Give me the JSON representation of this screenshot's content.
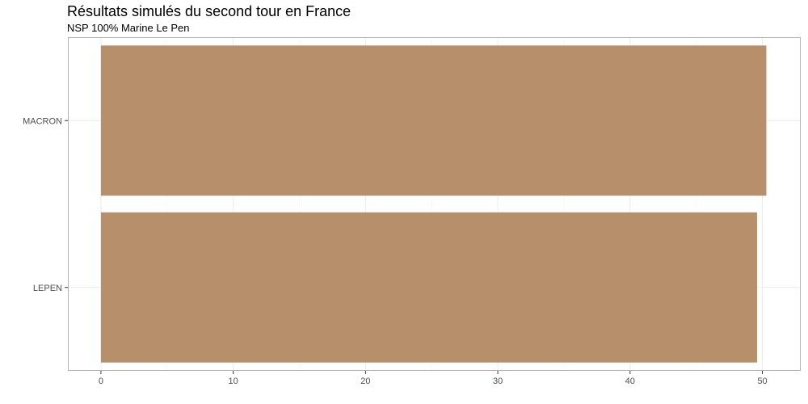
{
  "chart_data": {
    "type": "bar",
    "orientation": "horizontal",
    "title": "Résultats simulés du second tour en France",
    "subtitle": "NSP 100% Marine Le Pen",
    "xlabel": "",
    "ylabel": "",
    "categories": [
      "MACRON",
      "LEPEN"
    ],
    "values": [
      50.3,
      49.6
    ],
    "xlim": [
      -2.5,
      52.9
    ],
    "xticks": [
      0,
      10,
      20,
      30,
      40,
      50
    ],
    "grid": true,
    "legend": "none",
    "bar_color": "#b88f6b"
  }
}
